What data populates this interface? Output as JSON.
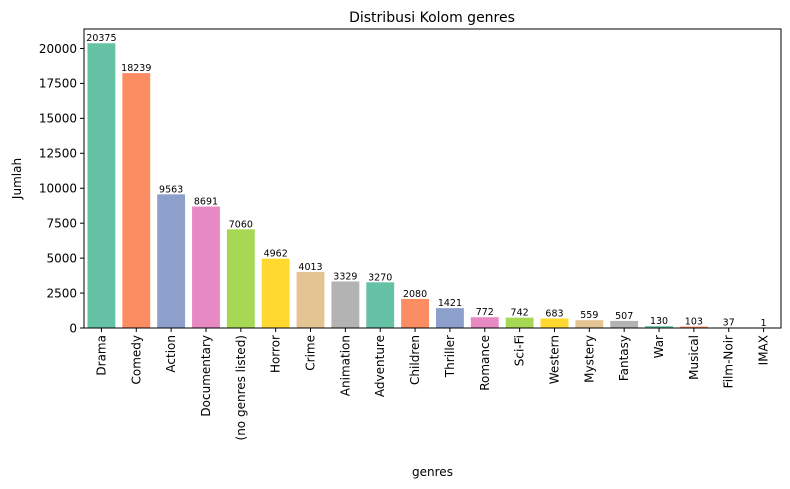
{
  "chart_data": {
    "type": "bar",
    "title": "Distribusi Kolom genres",
    "xlabel": "genres",
    "ylabel": "Jumlah",
    "ylim": [
      0,
      21394
    ],
    "yticks": [
      0,
      2500,
      5000,
      7500,
      10000,
      12500,
      15000,
      17500,
      20000
    ],
    "grid": false,
    "legend": "none",
    "categories": [
      "Drama",
      "Comedy",
      "Action",
      "Documentary",
      "(no genres listed)",
      "Horror",
      "Crime",
      "Animation",
      "Adventure",
      "Children",
      "Thriller",
      "Romance",
      "Sci-Fi",
      "Western",
      "Mystery",
      "Fantasy",
      "War",
      "Musical",
      "Film-Noir",
      "IMAX"
    ],
    "values": [
      20375,
      18239,
      9563,
      8691,
      7060,
      4962,
      4013,
      3329,
      3270,
      2080,
      1421,
      772,
      742,
      683,
      559,
      507,
      130,
      103,
      37,
      1
    ],
    "colors": [
      "#66c2a5",
      "#fc8d62",
      "#8da0cb",
      "#e78ac3",
      "#a6d854",
      "#ffd92f",
      "#e5c494",
      "#b3b3b3",
      "#66c2a5",
      "#fc8d62",
      "#8da0cb",
      "#e78ac3",
      "#a6d854",
      "#ffd92f",
      "#e5c494",
      "#b3b3b3",
      "#66c2a5",
      "#fc8d62",
      "#8da0cb",
      "#e78ac3"
    ]
  }
}
